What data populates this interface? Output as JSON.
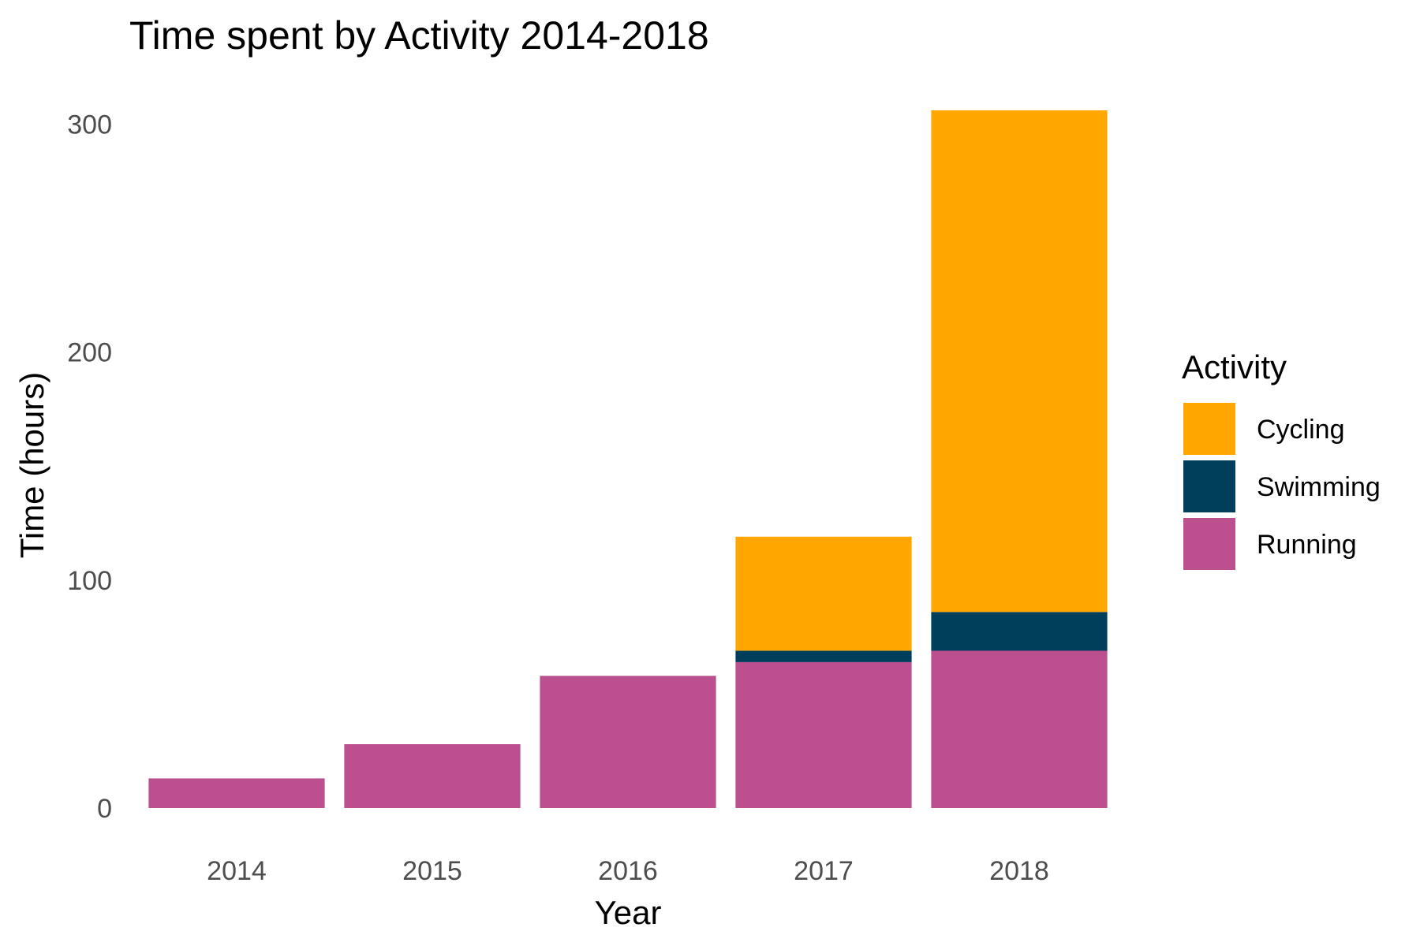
{
  "chart_data": {
    "type": "bar",
    "stacked": true,
    "title": "Time spent by Activity 2014-2018",
    "xlabel": "Year",
    "ylabel": "Time (hours)",
    "categories": [
      "2014",
      "2015",
      "2016",
      "2017",
      "2018"
    ],
    "series": [
      {
        "name": "Running",
        "color": "#BC4F8E",
        "values": [
          13,
          28,
          58,
          64,
          69
        ]
      },
      {
        "name": "Swimming",
        "color": "#003F5C",
        "values": [
          0,
          0,
          0,
          5,
          17
        ]
      },
      {
        "name": "Cycling",
        "color": "#FFA600",
        "values": [
          0,
          0,
          0,
          50,
          220
        ]
      }
    ],
    "ylim": [
      0,
      306
    ],
    "yticks": [
      0,
      100,
      200,
      300
    ],
    "grid": false,
    "legend": {
      "title": "Activity",
      "position": "right",
      "order": [
        "Cycling",
        "Swimming",
        "Running"
      ]
    }
  }
}
